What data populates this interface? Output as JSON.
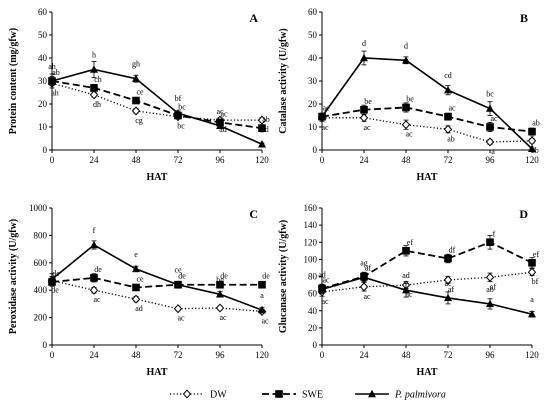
{
  "chart_data": [
    {
      "type": "line",
      "panel": "A",
      "title": "",
      "xlabel": "HAT",
      "ylabel": "Protein content  (mg/gfw)",
      "x": [
        0,
        24,
        48,
        72,
        96,
        120
      ],
      "xlim": [
        0,
        120
      ],
      "ylim": [
        0,
        60
      ],
      "yticks": [
        0,
        10,
        20,
        30,
        40,
        50,
        60
      ],
      "series": [
        {
          "name": "DW",
          "values": [
            29,
            24,
            17,
            14.5,
            13,
            13
          ],
          "errors": [
            2,
            1,
            1,
            1,
            1,
            1
          ],
          "labels": [
            "ah",
            "dh",
            "cg",
            "bc",
            "ad",
            "ad"
          ]
        },
        {
          "name": "SWE",
          "values": [
            30,
            27,
            21.5,
            15,
            12,
            9.5
          ],
          "errors": [
            2,
            1.5,
            1,
            1,
            1,
            1.5
          ],
          "labels": [
            "ab",
            "ch",
            "ce",
            "bc",
            "ac",
            "ab"
          ]
        },
        {
          "name": "P. palmivora",
          "values": [
            30,
            35,
            31,
            16,
            10.5,
            2.5
          ],
          "errors": [
            3,
            3.5,
            1.5,
            1,
            1,
            0.5
          ],
          "labels": [
            "ah",
            "h",
            "gh",
            "bf",
            "ac",
            "a"
          ]
        }
      ]
    },
    {
      "type": "line",
      "panel": "B",
      "title": "",
      "xlabel": "HAT",
      "ylabel": "Catalase activity  (U/gfw)",
      "x": [
        0,
        24,
        48,
        72,
        96,
        120
      ],
      "xlim": [
        0,
        120
      ],
      "ylim": [
        0,
        60
      ],
      "yticks": [
        0,
        10,
        20,
        30,
        40,
        50,
        60
      ],
      "series": [
        {
          "name": "DW",
          "values": [
            14,
            14,
            11,
            9,
            3.5,
            4
          ],
          "errors": [
            1.5,
            1.5,
            2,
            1.5,
            1,
            1
          ],
          "labels": [
            "ac",
            "ac",
            "ac",
            "ab",
            "a",
            "ab"
          ]
        },
        {
          "name": "SWE",
          "values": [
            14.5,
            17.5,
            18.5,
            14.5,
            10,
            8
          ],
          "errors": [
            1.5,
            2,
            2,
            1.5,
            2,
            1.5
          ],
          "labels": [
            "ae",
            "be",
            "be",
            "ac",
            "ac",
            "ab"
          ]
        },
        {
          "name": "P. palmivora",
          "values": [
            14.5,
            40,
            39,
            26,
            18,
            0.5
          ],
          "errors": [
            1.5,
            3,
            1.5,
            2,
            3,
            0.3
          ],
          "labels": [
            "",
            "d",
            "d",
            "cd",
            "bc",
            "a"
          ]
        }
      ]
    },
    {
      "type": "line",
      "panel": "C",
      "title": "",
      "xlabel": "HAT",
      "ylabel": "Peroxidase activity  (U/gfw)",
      "x": [
        0,
        24,
        48,
        72,
        96,
        120
      ],
      "xlim": [
        0,
        120
      ],
      "ylim": [
        0,
        1000
      ],
      "yticks": [
        0,
        200,
        400,
        600,
        800,
        1000
      ],
      "series": [
        {
          "name": "DW",
          "values": [
            470,
            400,
            335,
            265,
            270,
            245
          ],
          "errors": [
            30,
            20,
            20,
            15,
            15,
            15
          ],
          "labels": [
            "de",
            "ac",
            "ad",
            "ac",
            "ac",
            "ac"
          ]
        },
        {
          "name": "SWE",
          "values": [
            460,
            490,
            420,
            440,
            440,
            440
          ],
          "errors": [
            30,
            30,
            20,
            20,
            15,
            20
          ],
          "labels": [
            "de",
            "de",
            "ce",
            "de",
            "de",
            "de"
          ]
        },
        {
          "name": "P. palmivora",
          "values": [
            480,
            730,
            555,
            440,
            370,
            255
          ],
          "errors": [
            40,
            30,
            20,
            25,
            20,
            20
          ],
          "labels": [
            "",
            "f",
            "e",
            "ce",
            "be",
            "a"
          ]
        }
      ]
    },
    {
      "type": "line",
      "panel": "D",
      "title": "",
      "xlabel": "HAT",
      "ylabel": "Glucanase activity  (U/gfw)",
      "x": [
        0,
        24,
        48,
        72,
        96,
        120
      ],
      "xlim": [
        0,
        120
      ],
      "ylim": [
        0,
        160
      ],
      "yticks": [
        0,
        20,
        40,
        60,
        80,
        100,
        120,
        140,
        160
      ],
      "series": [
        {
          "name": "DW",
          "values": [
            62,
            68,
            70,
            76,
            79,
            85
          ],
          "errors": [
            5,
            5,
            4,
            4,
            5,
            4
          ],
          "labels": [
            "ac",
            "ac",
            "ac",
            "af",
            "af",
            "bf"
          ]
        },
        {
          "name": "SWE",
          "values": [
            66,
            80,
            110,
            101,
            120,
            96
          ],
          "errors": [
            5,
            5,
            6,
            5,
            8,
            6
          ],
          "labels": [
            "ac",
            "af",
            "ef",
            "df",
            "f",
            "ef"
          ]
        },
        {
          "name": "P. palmivora",
          "values": [
            65,
            79,
            64,
            55,
            48,
            36
          ],
          "errors": [
            5,
            5,
            8,
            7,
            6,
            3
          ],
          "labels": [
            "ad",
            "ag",
            "ad",
            "ac",
            "ab",
            "a"
          ]
        }
      ]
    }
  ],
  "legend": {
    "placement": "bottom",
    "items": [
      {
        "label": "DW",
        "style": "dotted",
        "marker": "diamond"
      },
      {
        "label": "SWE",
        "style": "dashed",
        "marker": "square"
      },
      {
        "label": "P. palmivora",
        "style": "solid",
        "marker": "triangle"
      }
    ]
  }
}
